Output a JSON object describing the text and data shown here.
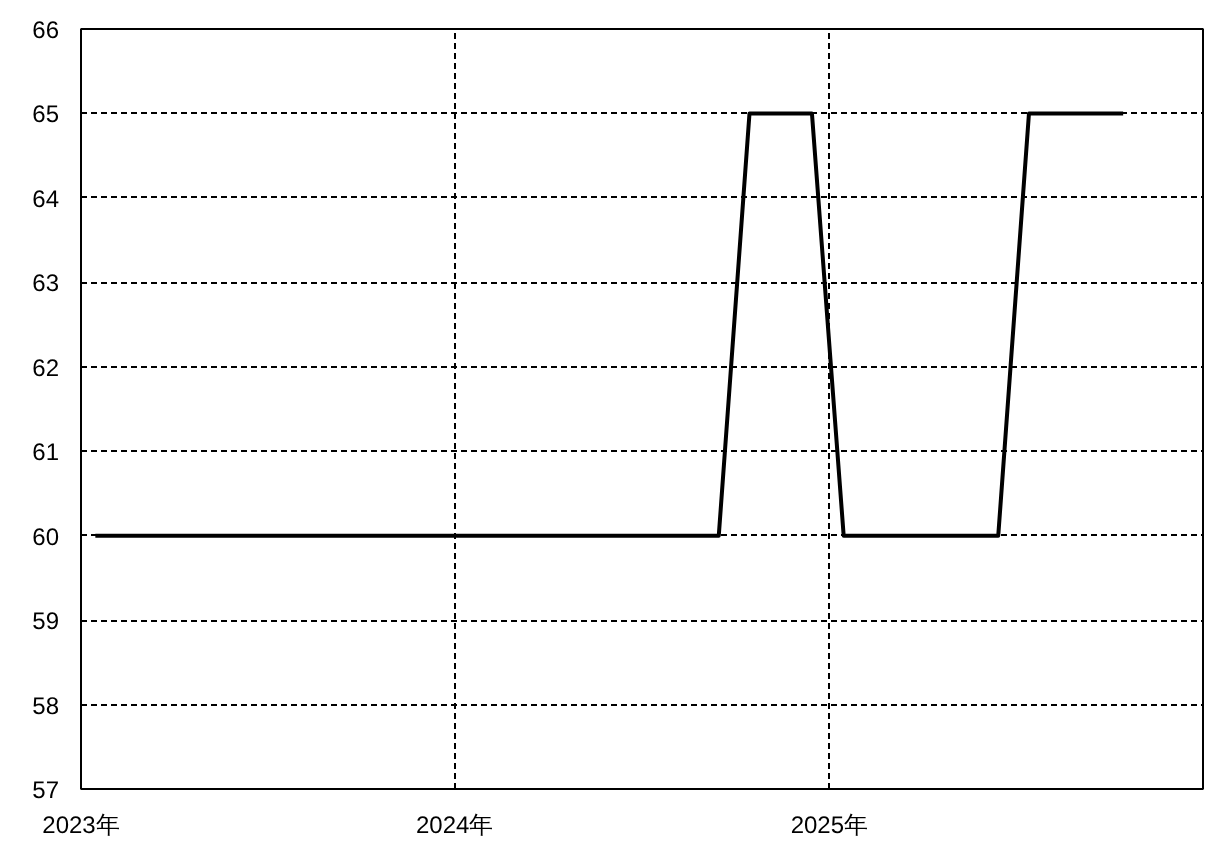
{
  "chart_data": {
    "type": "line",
    "x": [
      "2023-01-15",
      "2023-02-15",
      "2023-03-15",
      "2023-04-15",
      "2023-05-15",
      "2023-06-15",
      "2023-07-15",
      "2023-08-15",
      "2023-09-15",
      "2023-10-15",
      "2023-11-15",
      "2023-12-15",
      "2024-01-15",
      "2024-02-15",
      "2024-03-15",
      "2024-04-15",
      "2024-05-15",
      "2024-06-15",
      "2024-07-15",
      "2024-08-15",
      "2024-09-15",
      "2024-10-15",
      "2024-11-15",
      "2024-12-15",
      "2025-01-15",
      "2025-02-15",
      "2025-03-15",
      "2025-04-15",
      "2025-05-15",
      "2025-06-15",
      "2025-07-15",
      "2025-08-15",
      "2025-09-15",
      "2025-10-15"
    ],
    "series": [
      {
        "color": "#000000",
        "values": [
          60,
          60,
          60,
          60,
          60,
          60,
          60,
          60,
          60,
          60,
          60,
          60,
          60,
          60,
          60,
          60,
          60,
          60,
          60,
          60,
          60,
          65,
          65,
          65,
          60,
          60,
          60,
          60,
          60,
          60,
          65,
          65,
          65,
          65
        ]
      }
    ],
    "xlim": [
      "2023-01-01",
      "2026-01-01"
    ],
    "xticks": [
      {
        "value": "2023-01-01",
        "label": "2023年"
      },
      {
        "value": "2024-01-01",
        "label": "2024年"
      },
      {
        "value": "2025-01-01",
        "label": "2025年"
      }
    ],
    "ylim": [
      57,
      66
    ],
    "yticks": [
      57,
      58,
      59,
      60,
      61,
      62,
      63,
      64,
      65,
      66
    ],
    "grid": true,
    "marker": "none",
    "line_style": "solid"
  }
}
